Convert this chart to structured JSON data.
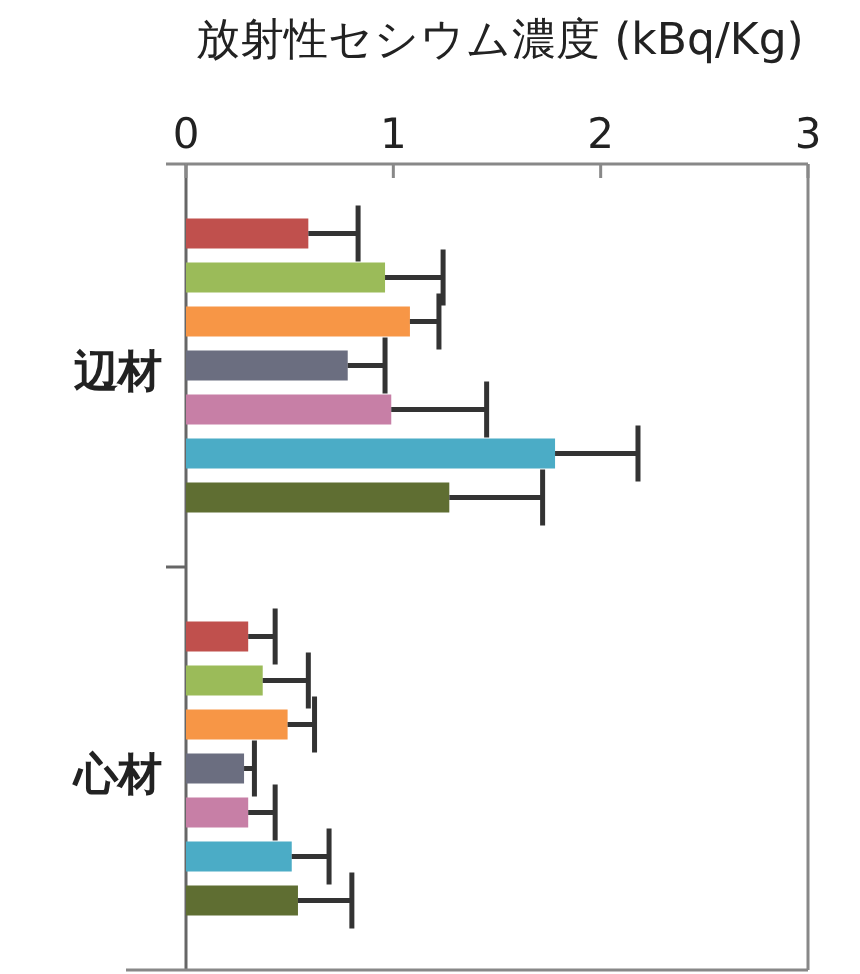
{
  "chart_data": {
    "type": "bar",
    "orientation": "horizontal",
    "xlabel": "放射性セシウム濃度 (kBq/Kg)",
    "categories": [
      "辺材",
      "心材"
    ],
    "xlim": [
      0,
      3
    ],
    "xticks": [
      0,
      1,
      2,
      3
    ],
    "grid": false,
    "series": [
      {
        "color": "#c0504d",
        "values": [
          0.59,
          0.3
        ],
        "errors": [
          [
            0.59,
            0.83
          ],
          [
            0.3,
            0.43
          ]
        ]
      },
      {
        "color": "#9bbb59",
        "values": [
          0.96,
          0.37
        ],
        "errors": [
          [
            0.96,
            1.24
          ],
          [
            0.37,
            0.59
          ]
        ]
      },
      {
        "color": "#f79646",
        "values": [
          1.08,
          0.49
        ],
        "errors": [
          [
            1.08,
            1.22
          ],
          [
            0.49,
            0.62
          ]
        ]
      },
      {
        "color": "#6b6e80",
        "values": [
          0.78,
          0.28
        ],
        "errors": [
          [
            0.78,
            0.96
          ],
          [
            0.28,
            0.33
          ]
        ]
      },
      {
        "color": "#c77fa6",
        "values": [
          0.99,
          0.3
        ],
        "errors": [
          [
            0.99,
            1.45
          ],
          [
            0.3,
            0.43
          ]
        ]
      },
      {
        "color": "#4bacc6",
        "values": [
          1.78,
          0.51
        ],
        "errors": [
          [
            1.78,
            2.18
          ],
          [
            0.51,
            0.69
          ]
        ]
      },
      {
        "color": "#5f6e32",
        "values": [
          1.27,
          0.54
        ],
        "errors": [
          [
            1.27,
            1.72
          ],
          [
            0.54,
            0.8
          ]
        ]
      }
    ]
  }
}
